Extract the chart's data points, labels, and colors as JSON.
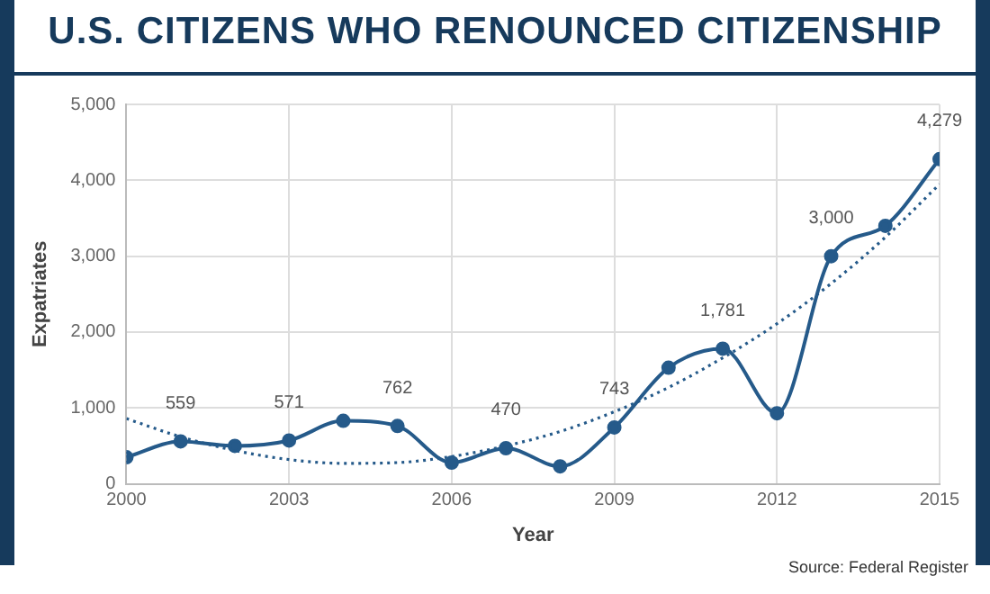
{
  "chart_data": {
    "type": "line",
    "title": "U.S. CITIZENS WHO RENOUNCED CITIZENSHIP",
    "xlabel": "Year",
    "ylabel": "Expatriates",
    "x": [
      2000,
      2001,
      2002,
      2003,
      2004,
      2005,
      2006,
      2007,
      2008,
      2009,
      2010,
      2011,
      2012,
      2013,
      2014,
      2015
    ],
    "series": [
      {
        "color": "#255a8a",
        "marker": "circle",
        "line_style": "solid",
        "values": [
          350,
          559,
          500,
          571,
          830,
          762,
          280,
          470,
          230,
          743,
          1530,
          1781,
          930,
          3000,
          3400,
          4279
        ],
        "value_labels": [
          null,
          "559",
          null,
          "571",
          null,
          "762",
          null,
          "470",
          null,
          "743",
          null,
          "1,781",
          null,
          "3,000",
          null,
          "4,279"
        ]
      },
      {
        "color": "#255a8a",
        "marker": "none",
        "line_style": "dotted",
        "values": [
          860,
          620,
          440,
          320,
          270,
          280,
          360,
          500,
          690,
          950,
          1270,
          1660,
          2110,
          2640,
          3250,
          3950
        ]
      }
    ],
    "xlim": [
      2000,
      2015
    ],
    "xticks": [
      2000,
      2003,
      2006,
      2009,
      2012,
      2015
    ],
    "ylim": [
      0,
      5000
    ],
    "yticks": [
      {
        "value": 0,
        "label": "0"
      },
      {
        "value": 1000,
        "label": "1,000"
      },
      {
        "value": 2000,
        "label": "2,000"
      },
      {
        "value": 3000,
        "label": "3,000"
      },
      {
        "value": 4000,
        "label": "4,000"
      },
      {
        "value": 5000,
        "label": "5,000"
      }
    ],
    "grid": true,
    "legend": false,
    "annotations": [
      "Source: Federal Register"
    ]
  }
}
